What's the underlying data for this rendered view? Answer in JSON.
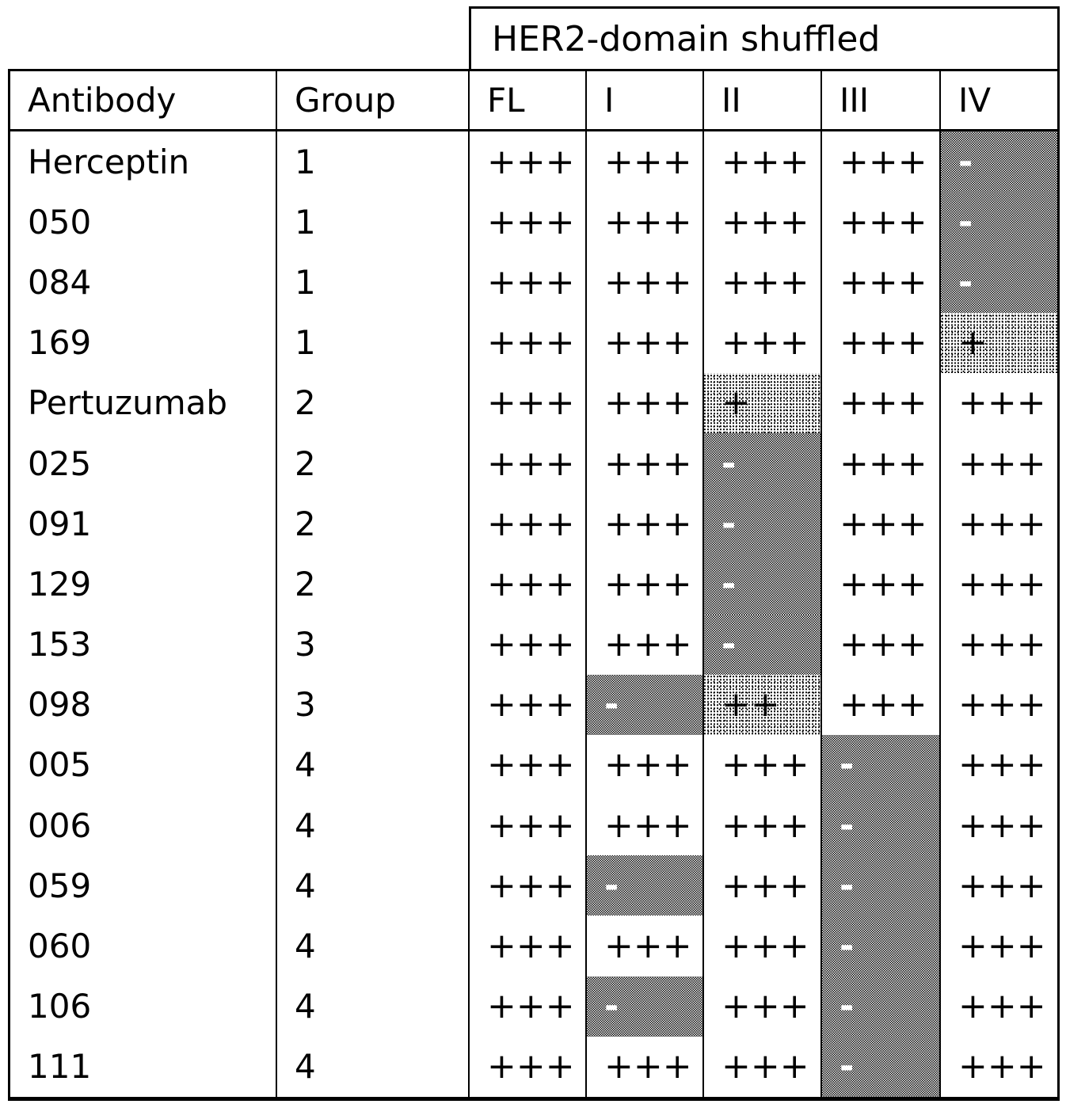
{
  "colors": {
    "background": "#ffffff",
    "text": "#000000",
    "border": "#000000",
    "negative_cell_text": "#ffffff"
  },
  "table": {
    "spanning_header": "HER2-domain shuffled",
    "columns": [
      "Antibody",
      "Group",
      "FL",
      "I",
      "II",
      "III",
      "IV"
    ],
    "rows": [
      {
        "antibody": "Herceptin",
        "group": "1",
        "results": [
          {
            "col": "FL",
            "text": "+++",
            "shade": "none"
          },
          {
            "col": "I",
            "text": "+++",
            "shade": "none"
          },
          {
            "col": "II",
            "text": "+++",
            "shade": "none"
          },
          {
            "col": "III",
            "text": "+++",
            "shade": "none"
          },
          {
            "col": "IV",
            "text": "-",
            "shade": "dark"
          }
        ]
      },
      {
        "antibody": "050",
        "group": "1",
        "results": [
          {
            "col": "FL",
            "text": "+++",
            "shade": "none"
          },
          {
            "col": "I",
            "text": "+++",
            "shade": "none"
          },
          {
            "col": "II",
            "text": "+++",
            "shade": "none"
          },
          {
            "col": "III",
            "text": "+++",
            "shade": "none"
          },
          {
            "col": "IV",
            "text": "-",
            "shade": "dark"
          }
        ]
      },
      {
        "antibody": "084",
        "group": "1",
        "results": [
          {
            "col": "FL",
            "text": "+++",
            "shade": "none"
          },
          {
            "col": "I",
            "text": "+++",
            "shade": "none"
          },
          {
            "col": "II",
            "text": "+++",
            "shade": "none"
          },
          {
            "col": "III",
            "text": "+++",
            "shade": "none"
          },
          {
            "col": "IV",
            "text": "-",
            "shade": "dark"
          }
        ]
      },
      {
        "antibody": "169",
        "group": "1",
        "results": [
          {
            "col": "FL",
            "text": "+++",
            "shade": "none"
          },
          {
            "col": "I",
            "text": "+++",
            "shade": "none"
          },
          {
            "col": "II",
            "text": "+++",
            "shade": "none"
          },
          {
            "col": "III",
            "text": "+++",
            "shade": "none"
          },
          {
            "col": "IV",
            "text": "+",
            "shade": "light"
          }
        ]
      },
      {
        "antibody": "Pertuzumab",
        "group": "2",
        "results": [
          {
            "col": "FL",
            "text": "+++",
            "shade": "none"
          },
          {
            "col": "I",
            "text": "+++",
            "shade": "none"
          },
          {
            "col": "II",
            "text": "+",
            "shade": "light"
          },
          {
            "col": "III",
            "text": "+++",
            "shade": "none"
          },
          {
            "col": "IV",
            "text": "+++",
            "shade": "none"
          }
        ]
      },
      {
        "antibody": "025",
        "group": "2",
        "results": [
          {
            "col": "FL",
            "text": "+++",
            "shade": "none"
          },
          {
            "col": "I",
            "text": "+++",
            "shade": "none"
          },
          {
            "col": "II",
            "text": "-",
            "shade": "dark"
          },
          {
            "col": "III",
            "text": "+++",
            "shade": "none"
          },
          {
            "col": "IV",
            "text": "+++",
            "shade": "none"
          }
        ]
      },
      {
        "antibody": "091",
        "group": "2",
        "results": [
          {
            "col": "FL",
            "text": "+++",
            "shade": "none"
          },
          {
            "col": "I",
            "text": "+++",
            "shade": "none"
          },
          {
            "col": "II",
            "text": "-",
            "shade": "dark"
          },
          {
            "col": "III",
            "text": "+++",
            "shade": "none"
          },
          {
            "col": "IV",
            "text": "+++",
            "shade": "none"
          }
        ]
      },
      {
        "antibody": "129",
        "group": "2",
        "results": [
          {
            "col": "FL",
            "text": "+++",
            "shade": "none"
          },
          {
            "col": "I",
            "text": "+++",
            "shade": "none"
          },
          {
            "col": "II",
            "text": "-",
            "shade": "dark"
          },
          {
            "col": "III",
            "text": "+++",
            "shade": "none"
          },
          {
            "col": "IV",
            "text": "+++",
            "shade": "none"
          }
        ]
      },
      {
        "antibody": "153",
        "group": "3",
        "results": [
          {
            "col": "FL",
            "text": "+++",
            "shade": "none"
          },
          {
            "col": "I",
            "text": "+++",
            "shade": "none"
          },
          {
            "col": "II",
            "text": "-",
            "shade": "dark"
          },
          {
            "col": "III",
            "text": "+++",
            "shade": "none"
          },
          {
            "col": "IV",
            "text": "+++",
            "shade": "none"
          }
        ]
      },
      {
        "antibody": "098",
        "group": "3",
        "results": [
          {
            "col": "FL",
            "text": "+++",
            "shade": "none"
          },
          {
            "col": "I",
            "text": "-",
            "shade": "dark"
          },
          {
            "col": "II",
            "text": "++",
            "shade": "light"
          },
          {
            "col": "III",
            "text": "+++",
            "shade": "none"
          },
          {
            "col": "IV",
            "text": "+++",
            "shade": "none"
          }
        ]
      },
      {
        "antibody": "005",
        "group": "4",
        "results": [
          {
            "col": "FL",
            "text": "+++",
            "shade": "none"
          },
          {
            "col": "I",
            "text": "+++",
            "shade": "none"
          },
          {
            "col": "II",
            "text": "+++",
            "shade": "none"
          },
          {
            "col": "III",
            "text": "-",
            "shade": "dark"
          },
          {
            "col": "IV",
            "text": "+++",
            "shade": "none"
          }
        ]
      },
      {
        "antibody": "006",
        "group": "4",
        "results": [
          {
            "col": "FL",
            "text": "+++",
            "shade": "none"
          },
          {
            "col": "I",
            "text": "+++",
            "shade": "none"
          },
          {
            "col": "II",
            "text": "+++",
            "shade": "none"
          },
          {
            "col": "III",
            "text": "-",
            "shade": "dark"
          },
          {
            "col": "IV",
            "text": "+++",
            "shade": "none"
          }
        ]
      },
      {
        "antibody": "059",
        "group": "4",
        "results": [
          {
            "col": "FL",
            "text": "+++",
            "shade": "none"
          },
          {
            "col": "I",
            "text": "-",
            "shade": "dark"
          },
          {
            "col": "II",
            "text": "+++",
            "shade": "none"
          },
          {
            "col": "III",
            "text": "-",
            "shade": "dark"
          },
          {
            "col": "IV",
            "text": "+++",
            "shade": "none"
          }
        ]
      },
      {
        "antibody": "060",
        "group": "4",
        "results": [
          {
            "col": "FL",
            "text": "+++",
            "shade": "none"
          },
          {
            "col": "I",
            "text": "+++",
            "shade": "none"
          },
          {
            "col": "II",
            "text": "+++",
            "shade": "none"
          },
          {
            "col": "III",
            "text": "-",
            "shade": "dark"
          },
          {
            "col": "IV",
            "text": "+++",
            "shade": "none"
          }
        ]
      },
      {
        "antibody": "106",
        "group": "4",
        "results": [
          {
            "col": "FL",
            "text": "+++",
            "shade": "none"
          },
          {
            "col": "I",
            "text": "-",
            "shade": "dark"
          },
          {
            "col": "II",
            "text": "+++",
            "shade": "none"
          },
          {
            "col": "III",
            "text": "-",
            "shade": "dark"
          },
          {
            "col": "IV",
            "text": "+++",
            "shade": "none"
          }
        ]
      },
      {
        "antibody": "111",
        "group": "4",
        "results": [
          {
            "col": "FL",
            "text": "+++",
            "shade": "none"
          },
          {
            "col": "I",
            "text": "+++",
            "shade": "none"
          },
          {
            "col": "II",
            "text": "+++",
            "shade": "none"
          },
          {
            "col": "III",
            "text": "-",
            "shade": "dark"
          },
          {
            "col": "IV",
            "text": "+++",
            "shade": "none"
          }
        ]
      }
    ]
  }
}
